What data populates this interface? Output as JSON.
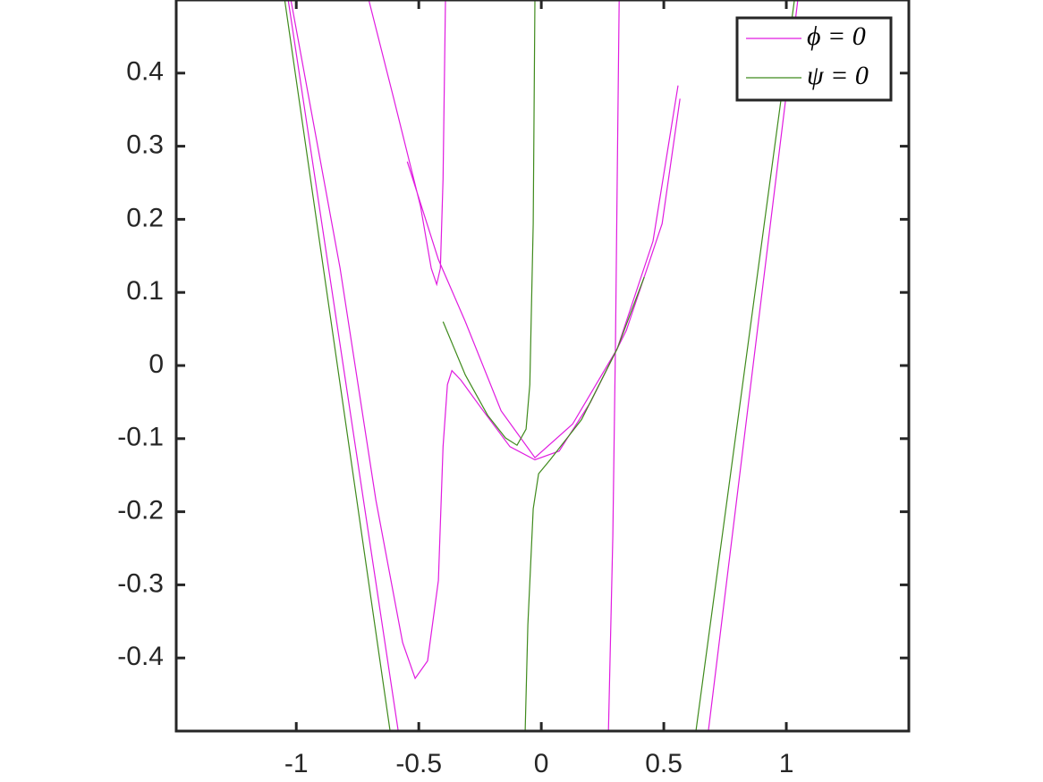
{
  "chart_data": {
    "type": "line",
    "xlim": [
      -1.49,
      1.5
    ],
    "ylim": [
      -0.5,
      0.5
    ],
    "xticks": [
      -1,
      -0.5,
      0,
      0.5,
      1
    ],
    "yticks": [
      -0.4,
      -0.3,
      -0.2,
      -0.1,
      0,
      0.1,
      0.2,
      0.3,
      0.4
    ],
    "legend": "northeast",
    "series": [
      {
        "name": "ϕ = 0",
        "color": "#e01be0",
        "x": [
          -0.704,
          -0.602,
          -0.493,
          -0.449,
          -0.427,
          -0.412,
          -0.401,
          -0.391,
          null,
          -0.547,
          -0.42,
          -0.31,
          -0.164,
          -0.026,
          0.128,
          0.31,
          0.456,
          0.558,
          null,
          -1.022,
          -0.821,
          -0.675,
          -0.566,
          -0.515,
          -0.464,
          -0.42,
          -0.401,
          -0.383,
          -0.365,
          -0.328,
          -0.237,
          -0.128,
          -0.026,
          0.073,
          0.201,
          0.347,
          0.493,
          0.566,
          null,
          0.318,
          0.31,
          0.303,
          0.292,
          0.274,
          null,
          1.047,
          0.682,
          null,
          -1.033,
          -0.584
        ],
        "y": [
          0.5,
          0.365,
          0.218,
          0.133,
          0.111,
          0.133,
          0.255,
          0.5,
          null,
          0.279,
          0.145,
          0.06,
          -0.062,
          -0.126,
          -0.08,
          0.023,
          0.17,
          0.383,
          null,
          0.5,
          0.133,
          -0.184,
          -0.379,
          -0.428,
          -0.404,
          -0.294,
          -0.111,
          -0.026,
          -0.007,
          -0.02,
          -0.062,
          -0.111,
          -0.129,
          -0.117,
          -0.05,
          0.048,
          0.194,
          0.365,
          null,
          0.5,
          0.255,
          0.035,
          -0.233,
          -0.5,
          null,
          0.5,
          -0.5,
          null,
          0.5,
          -0.5
        ]
      },
      {
        "name": "ψ = 0",
        "color": "#3f8a1c",
        "x": [
          -1.047,
          -0.617,
          null,
          -0.026,
          -0.033,
          -0.047,
          -0.062,
          -0.099,
          -0.146,
          -0.219,
          -0.31,
          -0.401,
          null,
          -0.066,
          -0.055,
          -0.033,
          -0.011,
          0.036,
          0.164,
          0.31,
          0.42,
          null,
          1.033,
          0.631
        ],
        "y": [
          0.5,
          -0.5,
          null,
          0.5,
          0.194,
          -0.026,
          -0.087,
          -0.109,
          -0.099,
          -0.068,
          -0.013,
          0.06,
          null,
          -0.5,
          -0.355,
          -0.196,
          -0.148,
          -0.129,
          -0.074,
          0.023,
          0.121,
          null,
          0.5,
          -0.5
        ]
      }
    ]
  }
}
